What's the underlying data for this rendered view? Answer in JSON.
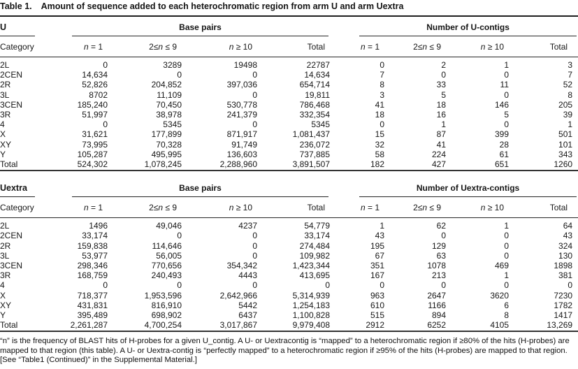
{
  "title": {
    "label": "Table 1.",
    "text": "Amount of sequence added to each heterochromatic region from arm U and arm Uextra"
  },
  "tables": [
    {
      "arm": "U",
      "group_bp": "Base pairs",
      "group_contigs": "Number of U-contigs",
      "col_category": "Category",
      "columns": [
        "n = 1",
        "2≤n ≤ 9",
        "n ≥ 10",
        "Total",
        "n = 1",
        "2≤n ≤ 9",
        "n ≥ 10",
        "Total"
      ],
      "rows": [
        {
          "category": "2L",
          "values": [
            "0",
            "3289",
            "19498",
            "22787",
            "0",
            "2",
            "1",
            "3"
          ]
        },
        {
          "category": "2CEN",
          "values": [
            "14,634",
            "0",
            "0",
            "14,634",
            "7",
            "0",
            "0",
            "7"
          ]
        },
        {
          "category": "2R",
          "values": [
            "52,826",
            "204,852",
            "397,036",
            "654,714",
            "8",
            "33",
            "11",
            "52"
          ]
        },
        {
          "category": "3L",
          "values": [
            "8702",
            "11,109",
            "0",
            "19,811",
            "3",
            "5",
            "0",
            "8"
          ]
        },
        {
          "category": "3CEN",
          "values": [
            "185,240",
            "70,450",
            "530,778",
            "786,468",
            "41",
            "18",
            "146",
            "205"
          ]
        },
        {
          "category": "3R",
          "values": [
            "51,997",
            "38,978",
            "241,379",
            "332,354",
            "18",
            "16",
            "5",
            "39"
          ]
        },
        {
          "category": "4",
          "values": [
            "0",
            "5345",
            "0",
            "5345",
            "0",
            "1",
            "0",
            "1"
          ]
        },
        {
          "category": "X",
          "values": [
            "31,621",
            "177,899",
            "871,917",
            "1,081,437",
            "15",
            "87",
            "399",
            "501"
          ]
        },
        {
          "category": "XY",
          "values": [
            "73,995",
            "70,328",
            "91,749",
            "236,072",
            "32",
            "41",
            "28",
            "101"
          ]
        },
        {
          "category": "Y",
          "values": [
            "105,287",
            "495,995",
            "136,603",
            "737,885",
            "58",
            "224",
            "61",
            "343"
          ]
        },
        {
          "category": "Total",
          "values": [
            "524,302",
            "1,078,245",
            "2,288,960",
            "3,891,507",
            "182",
            "427",
            "651",
            "1260"
          ]
        }
      ]
    },
    {
      "arm": "Uextra",
      "group_bp": "Base pairs",
      "group_contigs": "Number of Uextra-contigs",
      "col_category": "Category",
      "columns": [
        "n = 1",
        "2≤n ≤ 9",
        "n ≥ 10",
        "Total",
        "n = 1",
        "2≤n ≤ 9",
        "n ≥ 10",
        "Total"
      ],
      "rows": [
        {
          "category": "2L",
          "values": [
            "1496",
            "49,046",
            "4237",
            "54,779",
            "1",
            "62",
            "1",
            "64"
          ]
        },
        {
          "category": "2CEN",
          "values": [
            "33,174",
            "0",
            "0",
            "33,174",
            "43",
            "0",
            "0",
            "43"
          ]
        },
        {
          "category": "2R",
          "values": [
            "159,838",
            "114,646",
            "0",
            "274,484",
            "195",
            "129",
            "0",
            "324"
          ]
        },
        {
          "category": "3L",
          "values": [
            "53,977",
            "56,005",
            "0",
            "109,982",
            "67",
            "63",
            "0",
            "130"
          ]
        },
        {
          "category": "3CEN",
          "values": [
            "298,346",
            "770,656",
            "354,342",
            "1,423,344",
            "351",
            "1078",
            "469",
            "1898"
          ]
        },
        {
          "category": "3R",
          "values": [
            "168,759",
            "240,493",
            "4443",
            "413,695",
            "167",
            "213",
            "1",
            "381"
          ]
        },
        {
          "category": "4",
          "values": [
            "0",
            "0",
            "0",
            "0",
            "0",
            "0",
            "0",
            "0"
          ]
        },
        {
          "category": "X",
          "values": [
            "718,377",
            "1,953,596",
            "2,642,966",
            "5,314,939",
            "963",
            "2647",
            "3620",
            "7230"
          ]
        },
        {
          "category": "XY",
          "values": [
            "431,831",
            "816,910",
            "5442",
            "1,254,183",
            "610",
            "1166",
            "6",
            "1782"
          ]
        },
        {
          "category": "Y",
          "values": [
            "395,489",
            "698,902",
            "6437",
            "1,100,828",
            "515",
            "894",
            "8",
            "1417"
          ]
        },
        {
          "category": "Total",
          "values": [
            "2,261,287",
            "4,700,254",
            "3,017,867",
            "9,979,408",
            "2912",
            "6252",
            "4105",
            "13,269"
          ]
        }
      ]
    }
  ],
  "footnote": "“n” is the frequency of BLAST hits of H-probes for a given U_contig. A U- or Uextracontig is “mapped” to a heterochromatic region if ≥80% of the hits (H-probes) are mapped to that region (this table). A U- or Uextra-contig is “perfectly mapped” to a heterochromatic region if ≥95% of the hits (H-probes) are mapped to that region. [See “Table1 (Continued)” in the Supplemental Material.]"
}
